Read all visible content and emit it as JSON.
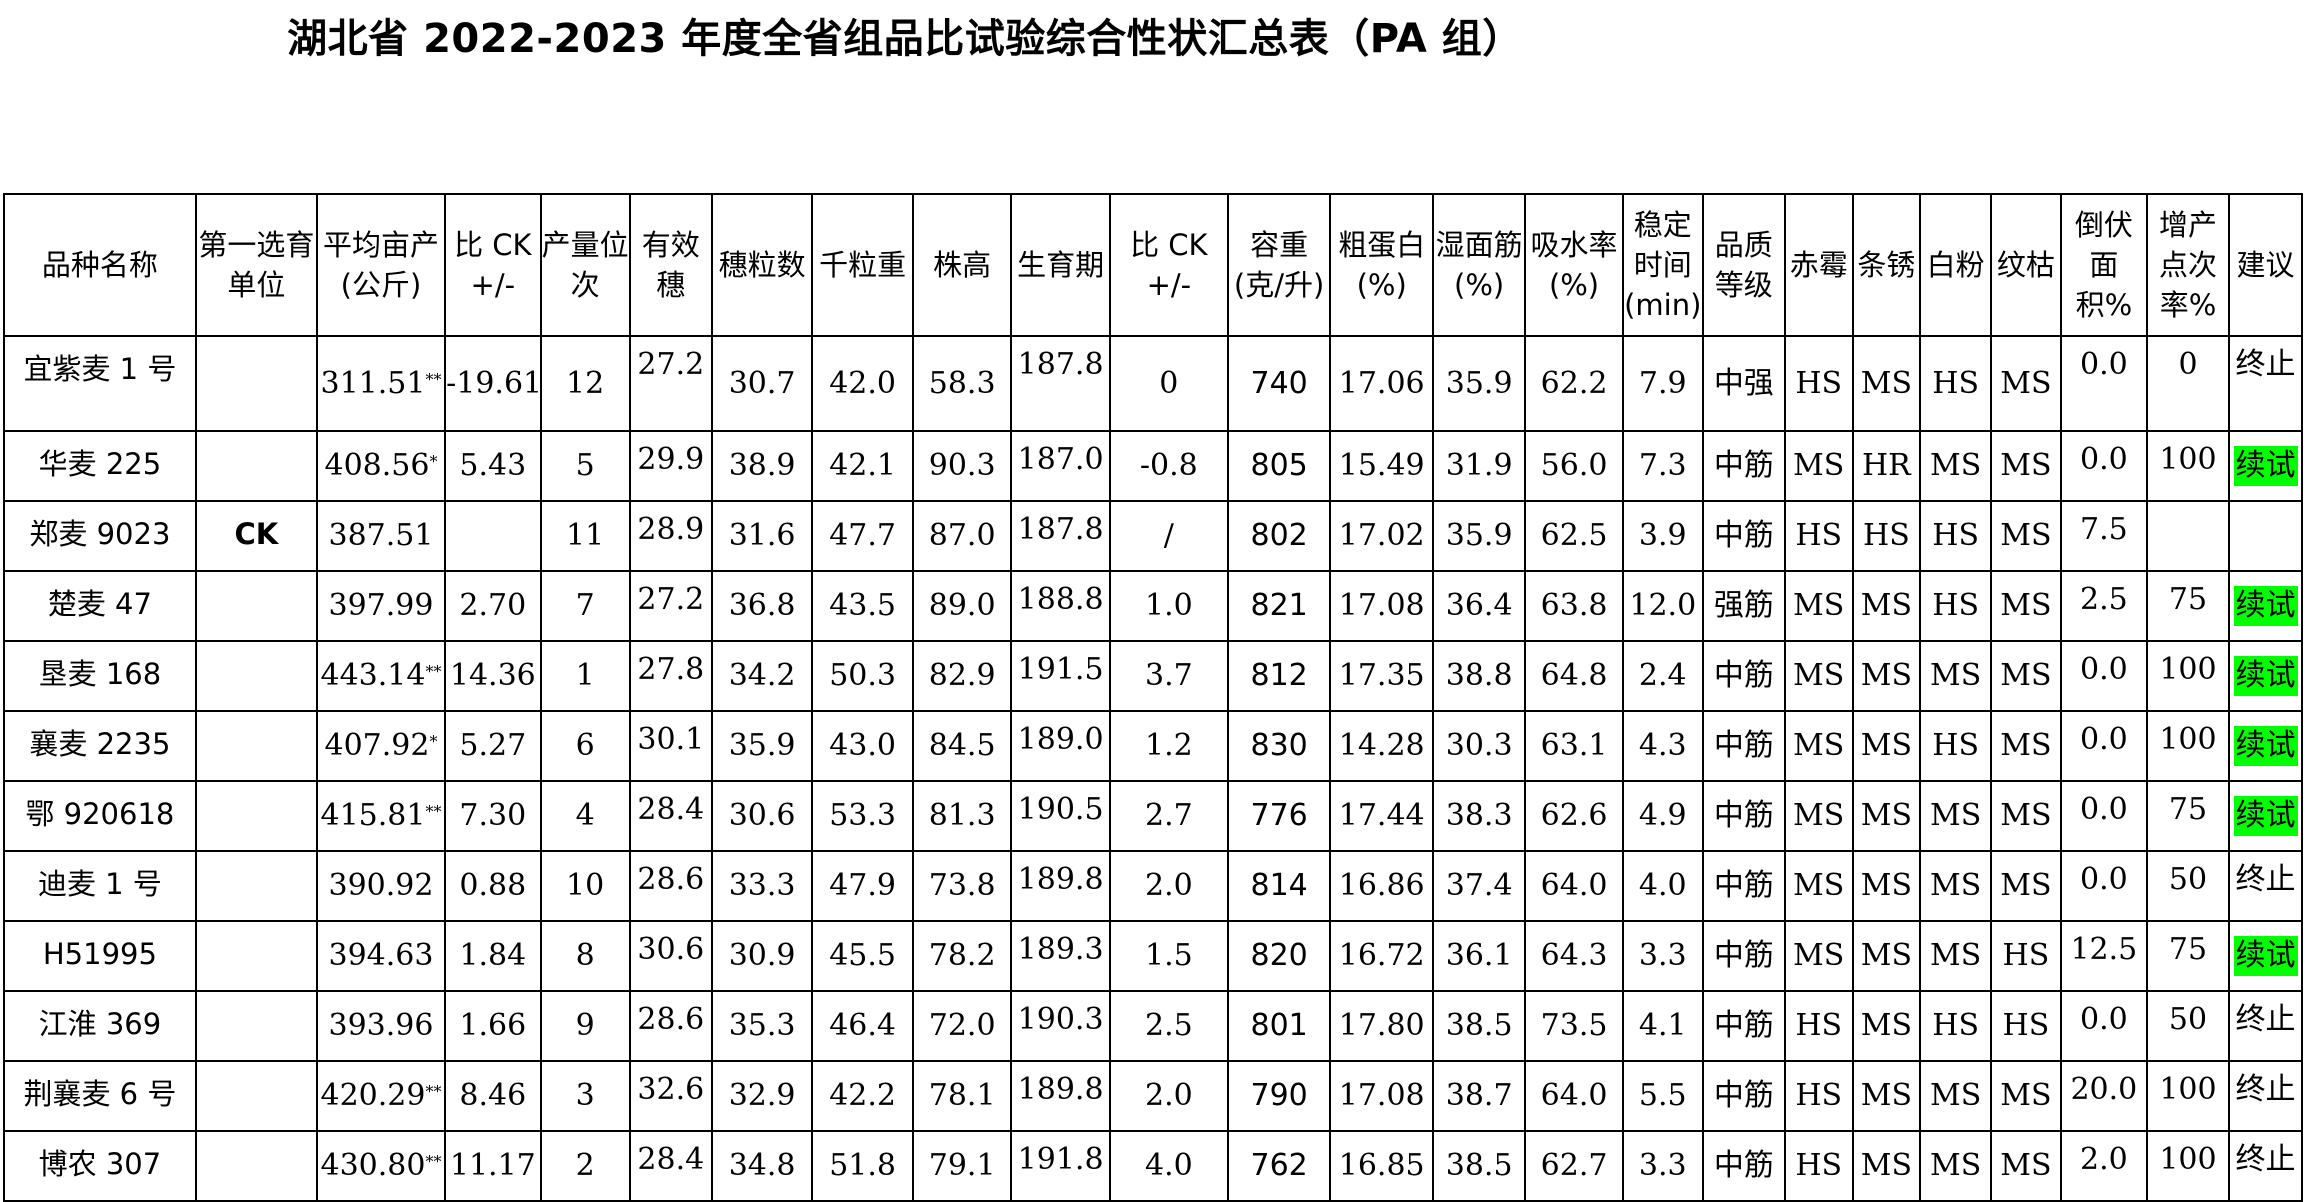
{
  "title": "湖北省 2022-2023 年度全省组品比试验综合性状汇总表（PA 组）",
  "headers": [
    "品种名称",
    "第一选育单位",
    "平均亩产(公斤)",
    "比 CK +/-",
    "产量位次",
    "有效穗",
    "穗粒数",
    "千粒重",
    "株高",
    "生育期",
    "比 CK +/-",
    "容重(克/升)",
    "粗蛋白(%)",
    "湿面筋(%)",
    "吸水率(%)",
    "稳定时间(min)",
    "品质等级",
    "赤霉",
    "条锈",
    "白粉",
    "纹枯",
    "倒伏面积%",
    "增产点次率%",
    "建议"
  ],
  "rows": [
    {
      "name": "宜紫麦 1 号",
      "unit": "",
      "yield": "311.51",
      "mark": "**",
      "diff": "-19.61",
      "rank": "12",
      "spikes": "27.2",
      "grains": "30.7",
      "tkw": "42.0",
      "height": "58.3",
      "period": "187.8",
      "pdiff": "0",
      "density": "740",
      "protein": "17.06",
      "gluten": "35.9",
      "absorb": "62.2",
      "stable": "7.9",
      "grade": "中强",
      "scab": "HS",
      "rust": "MS",
      "mildew": "HS",
      "sheath": "MS",
      "lodge": "0.0",
      "inc": "0",
      "advice": "终止",
      "advice_color": ""
    },
    {
      "name": "华麦 225",
      "unit": "",
      "yield": "408.56",
      "mark": "*",
      "diff": "5.43",
      "rank": "5",
      "spikes": "29.9",
      "grains": "38.9",
      "tkw": "42.1",
      "height": "90.3",
      "period": "187.0",
      "pdiff": "-0.8",
      "density": "805",
      "protein": "15.49",
      "gluten": "31.9",
      "absorb": "56.0",
      "stable": "7.3",
      "grade": "中筋",
      "scab": "MS",
      "rust": "HR",
      "mildew": "MS",
      "sheath": "MS",
      "lodge": "0.0",
      "inc": "100",
      "advice": "续试",
      "advice_color": "green"
    },
    {
      "name": "郑麦 9023",
      "unit": "CK",
      "yield": "387.51",
      "mark": "",
      "diff": "",
      "rank": "11",
      "spikes": "28.9",
      "grains": "31.6",
      "tkw": "47.7",
      "height": "87.0",
      "period": "187.8",
      "pdiff": "/",
      "density": "802",
      "protein": "17.02",
      "gluten": "35.9",
      "absorb": "62.5",
      "stable": "3.9",
      "grade": "中筋",
      "scab": "HS",
      "rust": "HS",
      "mildew": "HS",
      "sheath": "MS",
      "lodge": "7.5",
      "inc": "",
      "advice": "",
      "advice_color": ""
    },
    {
      "name": "楚麦 47",
      "unit": "",
      "yield": "397.99",
      "mark": "",
      "diff": "2.70",
      "rank": "7",
      "spikes": "27.2",
      "grains": "36.8",
      "tkw": "43.5",
      "height": "89.0",
      "period": "188.8",
      "pdiff": "1.0",
      "density": "821",
      "protein": "17.08",
      "gluten": "36.4",
      "absorb": "63.8",
      "stable": "12.0",
      "grade": "强筋",
      "scab": "MS",
      "rust": "MS",
      "mildew": "HS",
      "sheath": "MS",
      "lodge": "2.5",
      "inc": "75",
      "advice": "续试",
      "advice_color": "green"
    },
    {
      "name": "垦麦 168",
      "unit": "",
      "yield": "443.14",
      "mark": "**",
      "diff": "14.36",
      "rank": "1",
      "spikes": "27.8",
      "grains": "34.2",
      "tkw": "50.3",
      "height": "82.9",
      "period": "191.5",
      "pdiff": "3.7",
      "density": "812",
      "protein": "17.35",
      "gluten": "38.8",
      "absorb": "64.8",
      "stable": "2.4",
      "grade": "中筋",
      "scab": "MS",
      "rust": "MS",
      "mildew": "MS",
      "sheath": "MS",
      "lodge": "0.0",
      "inc": "100",
      "advice": "续试",
      "advice_color": "green"
    },
    {
      "name": "襄麦 2235",
      "unit": "",
      "yield": "407.92",
      "mark": "*",
      "diff": "5.27",
      "rank": "6",
      "spikes": "30.1",
      "grains": "35.9",
      "tkw": "43.0",
      "height": "84.5",
      "period": "189.0",
      "pdiff": "1.2",
      "density": "830",
      "protein": "14.28",
      "gluten": "30.3",
      "absorb": "63.1",
      "stable": "4.3",
      "grade": "中筋",
      "scab": "MS",
      "rust": "MS",
      "mildew": "HS",
      "sheath": "MS",
      "lodge": "0.0",
      "inc": "100",
      "advice": "续试",
      "advice_color": "green"
    },
    {
      "name": "鄂 920618",
      "unit": "",
      "yield": "415.81",
      "mark": "**",
      "diff": "7.30",
      "rank": "4",
      "spikes": "28.4",
      "grains": "30.6",
      "tkw": "53.3",
      "height": "81.3",
      "period": "190.5",
      "pdiff": "2.7",
      "density": "776",
      "protein": "17.44",
      "gluten": "38.3",
      "absorb": "62.6",
      "stable": "4.9",
      "grade": "中筋",
      "scab": "MS",
      "rust": "MS",
      "mildew": "MS",
      "sheath": "MS",
      "lodge": "0.0",
      "inc": "75",
      "advice": "续试",
      "advice_color": "green"
    },
    {
      "name": "迪麦 1 号",
      "unit": "",
      "yield": "390.92",
      "mark": "",
      "diff": "0.88",
      "rank": "10",
      "spikes": "28.6",
      "grains": "33.3",
      "tkw": "47.9",
      "height": "73.8",
      "period": "189.8",
      "pdiff": "2.0",
      "density": "814",
      "protein": "16.86",
      "gluten": "37.4",
      "absorb": "64.0",
      "stable": "4.0",
      "grade": "中筋",
      "scab": "MS",
      "rust": "MS",
      "mildew": "MS",
      "sheath": "MS",
      "lodge": "0.0",
      "inc": "50",
      "advice": "终止",
      "advice_color": ""
    },
    {
      "name": "H51995",
      "unit": "",
      "yield": "394.63",
      "mark": "",
      "diff": "1.84",
      "rank": "8",
      "spikes": "30.6",
      "grains": "30.9",
      "tkw": "45.5",
      "height": "78.2",
      "period": "189.3",
      "pdiff": "1.5",
      "density": "820",
      "protein": "16.72",
      "gluten": "36.1",
      "absorb": "64.3",
      "stable": "3.3",
      "grade": "中筋",
      "scab": "MS",
      "rust": "MS",
      "mildew": "MS",
      "sheath": "HS",
      "lodge": "12.5",
      "inc": "75",
      "advice": "续试",
      "advice_color": "green"
    },
    {
      "name": "江淮 369",
      "unit": "",
      "yield": "393.96",
      "mark": "",
      "diff": "1.66",
      "rank": "9",
      "spikes": "28.6",
      "grains": "35.3",
      "tkw": "46.4",
      "height": "72.0",
      "period": "190.3",
      "pdiff": "2.5",
      "density": "801",
      "protein": "17.80",
      "gluten": "38.5",
      "absorb": "73.5",
      "stable": "4.1",
      "grade": "中筋",
      "scab": "HS",
      "rust": "MS",
      "mildew": "HS",
      "sheath": "HS",
      "lodge": "0.0",
      "inc": "50",
      "advice": "终止",
      "advice_color": ""
    },
    {
      "name": "荆襄麦 6 号",
      "unit": "",
      "yield": "420.29",
      "mark": "**",
      "diff": "8.46",
      "rank": "3",
      "spikes": "32.6",
      "grains": "32.9",
      "tkw": "42.2",
      "height": "78.1",
      "period": "189.8",
      "pdiff": "2.0",
      "density": "790",
      "protein": "17.08",
      "gluten": "38.7",
      "absorb": "64.0",
      "stable": "5.5",
      "grade": "中筋",
      "scab": "HS",
      "rust": "MS",
      "mildew": "MS",
      "sheath": "MS",
      "lodge": "20.0",
      "inc": "100",
      "advice": "终止",
      "advice_color": ""
    },
    {
      "name": "博农 307",
      "unit": "",
      "yield": "430.80",
      "mark": "**",
      "diff": "11.17",
      "rank": "2",
      "spikes": "28.4",
      "grains": "34.8",
      "tkw": "51.8",
      "height": "79.1",
      "period": "191.8",
      "pdiff": "4.0",
      "density": "762",
      "protein": "16.85",
      "gluten": "38.5",
      "absorb": "62.7",
      "stable": "3.3",
      "grade": "中筋",
      "scab": "HS",
      "rust": "MS",
      "mildew": "MS",
      "sheath": "MS",
      "lodge": "2.0",
      "inc": "100",
      "advice": "终止",
      "advice_color": ""
    }
  ]
}
